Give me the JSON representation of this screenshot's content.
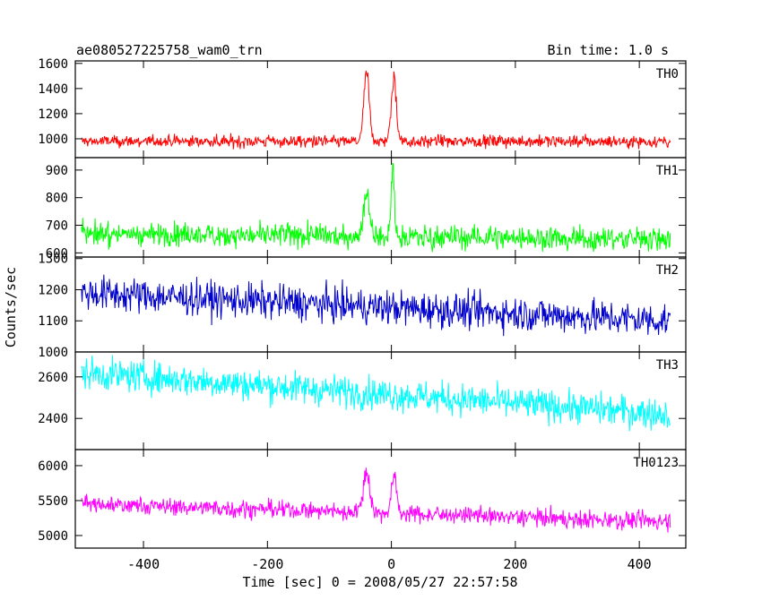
{
  "chart_data": {
    "type": "line",
    "title": "ae080527225758_wam0_trn",
    "bin_time_label": "Bin time: 1.0 s",
    "xlabel": "Time [sec] 0 = 2008/05/27 22:57:58",
    "ylabel": "Counts/sec",
    "xlim": [
      -510,
      475
    ],
    "x_ticks": [
      -400,
      -200,
      0,
      200,
      400
    ],
    "x_start": -500,
    "x_end": 450,
    "grid": false,
    "panels": [
      {
        "name": "TH0",
        "color": "#ff0000",
        "ylim": [
          850,
          1620
        ],
        "y_ticks": [
          1000,
          1200,
          1400,
          1600
        ],
        "baseline_start": 980,
        "baseline_end": 980,
        "noise": 35,
        "flares": [
          {
            "t": -40,
            "peak": 1600,
            "width": 6
          },
          {
            "t": 4,
            "peak": 1530,
            "width": 6
          }
        ]
      },
      {
        "name": "TH1",
        "color": "#00ff00",
        "ylim": [
          585,
          945
        ],
        "y_ticks": [
          600,
          700,
          800,
          900
        ],
        "baseline_start": 670,
        "baseline_end": 650,
        "noise": 30,
        "flares": [
          {
            "t": -40,
            "peak": 860,
            "width": 7
          },
          {
            "t": 2,
            "peak": 940,
            "width": 4
          }
        ]
      },
      {
        "name": "TH2",
        "color": "#0000cc",
        "ylim": [
          1000,
          1305
        ],
        "y_ticks": [
          1000,
          1100,
          1200,
          1300
        ],
        "baseline_start": 1190,
        "baseline_end": 1100,
        "noise": 40,
        "flares": []
      },
      {
        "name": "TH3",
        "color": "#00ffff",
        "ylim": [
          2250,
          2720
        ],
        "y_ticks": [
          2400,
          2600
        ],
        "baseline_start": 2620,
        "baseline_end": 2420,
        "noise": 55,
        "flares": []
      },
      {
        "name": "TH0123",
        "color": "#ff00ff",
        "ylim": [
          4820,
          6230
        ],
        "y_ticks": [
          5000,
          5500,
          6000
        ],
        "baseline_start": 5450,
        "baseline_end": 5200,
        "noise": 90,
        "flares": [
          {
            "t": -40,
            "peak": 6150,
            "width": 7
          },
          {
            "t": 4,
            "peak": 6050,
            "width": 6
          }
        ]
      }
    ]
  }
}
